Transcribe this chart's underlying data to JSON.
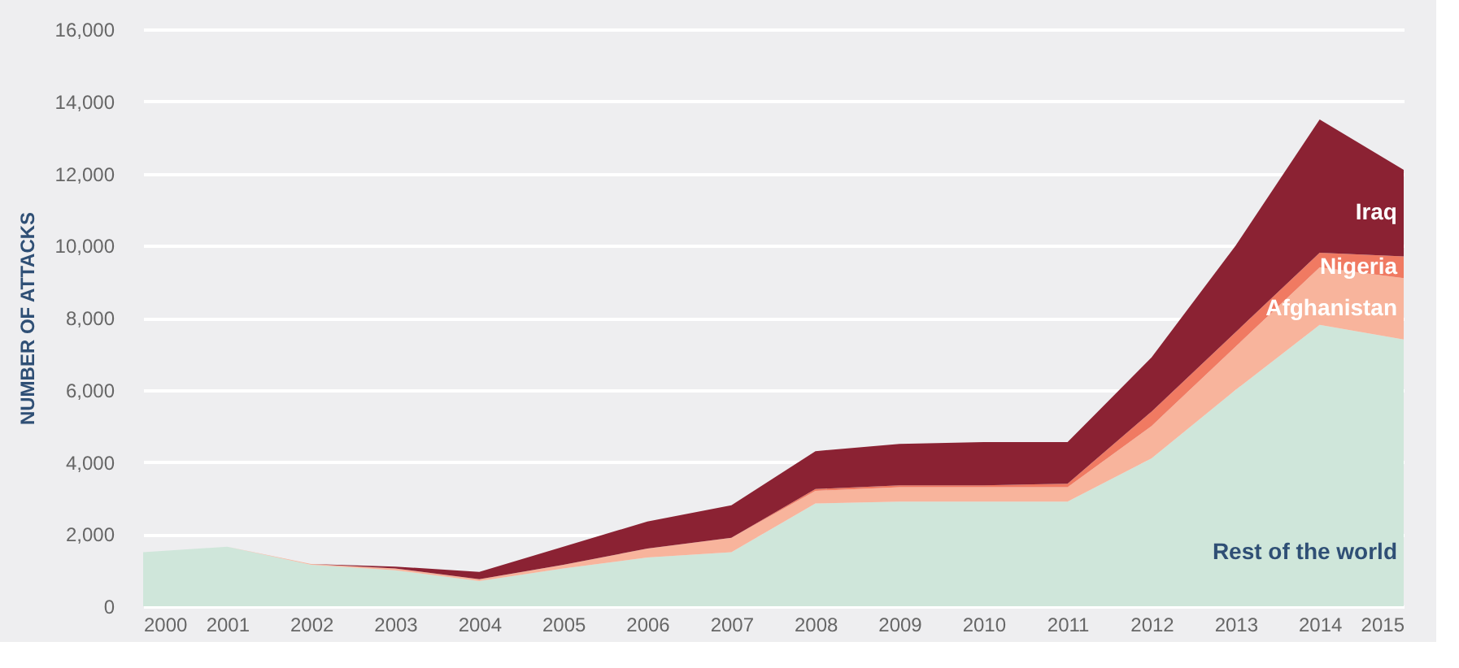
{
  "chart_data": {
    "type": "area",
    "stacked": true,
    "ylabel": "NUMBER OF ATTACKS",
    "x": [
      2000,
      2001,
      2002,
      2003,
      2004,
      2005,
      2006,
      2007,
      2008,
      2009,
      2010,
      2011,
      2012,
      2013,
      2014,
      2015
    ],
    "xlim": [
      2000,
      2015
    ],
    "xticks": [
      2000,
      2001,
      2002,
      2003,
      2004,
      2005,
      2006,
      2007,
      2008,
      2009,
      2010,
      2011,
      2012,
      2013,
      2014,
      2015
    ],
    "ylim": [
      0,
      16000
    ],
    "yticks": [
      {
        "value": 0,
        "label": "0"
      },
      {
        "value": 2000,
        "label": "2,000"
      },
      {
        "value": 4000,
        "label": "4,000"
      },
      {
        "value": 6000,
        "label": "6,000"
      },
      {
        "value": 8000,
        "label": "8,000"
      },
      {
        "value": 10000,
        "label": "10,000"
      },
      {
        "value": 12000,
        "label": "12,000"
      },
      {
        "value": 14000,
        "label": "14,000"
      },
      {
        "value": 16000,
        "label": "16,000"
      }
    ],
    "grid": "y",
    "series": [
      {
        "name": "Rest of the world",
        "color": "#cfe6da",
        "values": [
          1500,
          1650,
          1150,
          1000,
          700,
          1050,
          1350,
          1500,
          2850,
          2900,
          2900,
          2900,
          4100,
          6000,
          7800,
          7400
        ]
      },
      {
        "name": "Afghanistan",
        "color": "#f8b49c",
        "values": [
          0,
          0,
          20,
          50,
          50,
          100,
          250,
          400,
          350,
          400,
          400,
          400,
          900,
          1200,
          1600,
          1700
        ]
      },
      {
        "name": "Nigeria",
        "color": "#f07a62",
        "values": [
          0,
          0,
          0,
          0,
          0,
          0,
          0,
          0,
          50,
          50,
          50,
          100,
          400,
          400,
          400,
          600
        ]
      },
      {
        "name": "Iraq",
        "color": "#8b2233",
        "values": [
          0,
          0,
          0,
          50,
          200,
          500,
          750,
          900,
          1050,
          1150,
          1200,
          1150,
          1500,
          2400,
          3700,
          2400
        ]
      }
    ]
  }
}
